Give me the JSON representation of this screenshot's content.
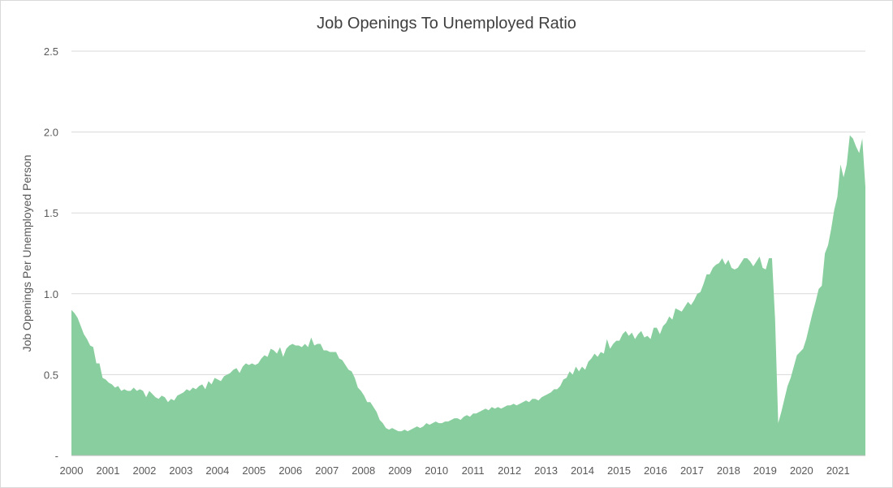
{
  "chart_data": {
    "type": "area",
    "title": "Job Openings To Unemployed Ratio",
    "xlabel": "",
    "ylabel": "Job Openings Per Unemployed Person",
    "ylim": [
      0,
      2.5
    ],
    "xlim": [
      2000,
      2021.75
    ],
    "y_ticks": [
      0,
      0.5,
      1.0,
      1.5,
      2.0,
      2.5
    ],
    "y_tick_labels": [
      "-",
      "0.5",
      "1.0",
      "1.5",
      "2.0",
      "2.5"
    ],
    "x_tick_labels": [
      "2000",
      "2001",
      "2002",
      "2003",
      "2004",
      "2005",
      "2006",
      "2007",
      "2008",
      "2009",
      "2010",
      "2011",
      "2012",
      "2013",
      "2014",
      "2015",
      "2016",
      "2017",
      "2018",
      "2019",
      "2020",
      "2021"
    ],
    "grid": "horizontal",
    "legend": "none",
    "fill_color": "#89ce9e",
    "grid_color": "#d9d9d9",
    "axis_color": "#bfbfbf",
    "text_color": "#595959",
    "series": [
      {
        "values": [
          0.9,
          0.88,
          0.85,
          0.8,
          0.75,
          0.72,
          0.68,
          0.67,
          0.57,
          0.57,
          0.48,
          0.47,
          0.45,
          0.44,
          0.42,
          0.43,
          0.4,
          0.41,
          0.4,
          0.4,
          0.42,
          0.4,
          0.41,
          0.4,
          0.36,
          0.4,
          0.38,
          0.36,
          0.35,
          0.37,
          0.36,
          0.33,
          0.35,
          0.34,
          0.37,
          0.38,
          0.39,
          0.41,
          0.4,
          0.42,
          0.41,
          0.43,
          0.44,
          0.41,
          0.46,
          0.44,
          0.48,
          0.47,
          0.46,
          0.49,
          0.5,
          0.51,
          0.53,
          0.54,
          0.51,
          0.55,
          0.57,
          0.56,
          0.57,
          0.56,
          0.57,
          0.6,
          0.62,
          0.61,
          0.66,
          0.65,
          0.63,
          0.67,
          0.61,
          0.66,
          0.68,
          0.69,
          0.68,
          0.68,
          0.67,
          0.69,
          0.67,
          0.73,
          0.68,
          0.69,
          0.69,
          0.65,
          0.65,
          0.64,
          0.64,
          0.64,
          0.6,
          0.59,
          0.56,
          0.53,
          0.52,
          0.48,
          0.42,
          0.4,
          0.37,
          0.33,
          0.33,
          0.3,
          0.27,
          0.22,
          0.2,
          0.17,
          0.16,
          0.17,
          0.16,
          0.15,
          0.15,
          0.16,
          0.15,
          0.16,
          0.17,
          0.18,
          0.17,
          0.18,
          0.2,
          0.19,
          0.2,
          0.21,
          0.2,
          0.2,
          0.21,
          0.21,
          0.22,
          0.23,
          0.23,
          0.22,
          0.24,
          0.25,
          0.24,
          0.26,
          0.26,
          0.27,
          0.28,
          0.29,
          0.28,
          0.3,
          0.29,
          0.3,
          0.29,
          0.3,
          0.31,
          0.31,
          0.32,
          0.31,
          0.32,
          0.33,
          0.34,
          0.33,
          0.35,
          0.35,
          0.34,
          0.36,
          0.37,
          0.38,
          0.39,
          0.41,
          0.41,
          0.43,
          0.47,
          0.48,
          0.52,
          0.5,
          0.55,
          0.52,
          0.55,
          0.53,
          0.58,
          0.6,
          0.63,
          0.61,
          0.64,
          0.63,
          0.72,
          0.66,
          0.69,
          0.71,
          0.71,
          0.75,
          0.77,
          0.74,
          0.76,
          0.72,
          0.75,
          0.77,
          0.73,
          0.74,
          0.72,
          0.79,
          0.79,
          0.75,
          0.8,
          0.82,
          0.86,
          0.84,
          0.91,
          0.9,
          0.89,
          0.92,
          0.95,
          0.93,
          0.96,
          1.0,
          1.01,
          1.06,
          1.12,
          1.12,
          1.16,
          1.18,
          1.19,
          1.22,
          1.18,
          1.21,
          1.16,
          1.15,
          1.16,
          1.19,
          1.22,
          1.22,
          1.2,
          1.17,
          1.2,
          1.23,
          1.16,
          1.15,
          1.22,
          1.22,
          0.84,
          0.2,
          0.27,
          0.35,
          0.43,
          0.48,
          0.55,
          0.62,
          0.64,
          0.66,
          0.72,
          0.8,
          0.88,
          0.95,
          1.03,
          1.05,
          1.25,
          1.3,
          1.4,
          1.52,
          1.6,
          1.8,
          1.72,
          1.8,
          1.98,
          1.96,
          1.91,
          1.87,
          1.96,
          1.66
        ]
      }
    ]
  }
}
